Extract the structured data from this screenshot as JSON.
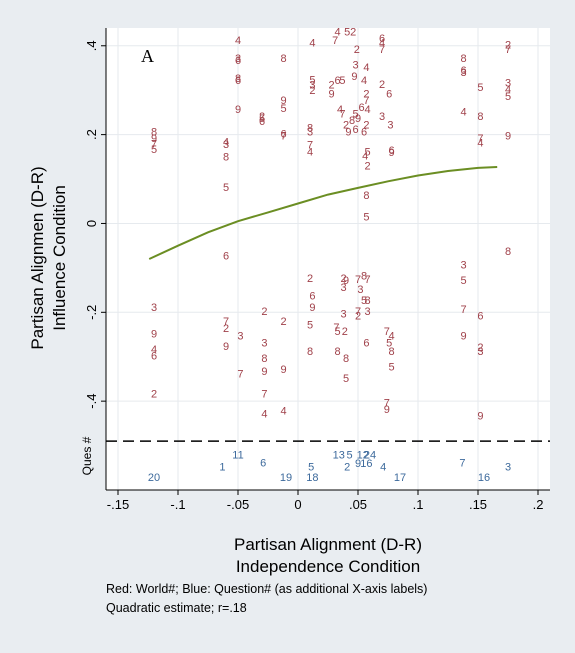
{
  "panel_label": "A",
  "ques_label": "Ques #",
  "notes": [
    "Red: World#; Blue: Question# (as additional X-axis labels)",
    "Quadratic estimate; r=.18"
  ],
  "colors": {
    "world_marker": "#a0414a",
    "question_marker": "#3d6a9c",
    "fit_line": "#6b8e23",
    "grid": "#e6eaee",
    "dash": "#000000"
  },
  "chart_data": {
    "type": "scatter",
    "xlabel": [
      "Partisan Alignment (D-R)",
      "Independence Condition"
    ],
    "ylabel": [
      "Partisan Alignmen (D-R)",
      "Influence Condition"
    ],
    "xlim": [
      -0.16,
      0.21
    ],
    "ylim": [
      -0.6,
      0.44
    ],
    "x_ticks": [
      -0.15,
      -0.1,
      -0.05,
      0,
      0.05,
      0.1,
      0.15,
      0.2
    ],
    "x_tick_labels": [
      "-.15",
      "-.1",
      "-.05",
      "0",
      ".05",
      ".1",
      ".15",
      ".2"
    ],
    "y_ticks": [
      -0.4,
      -0.2,
      0,
      0.2,
      0.4
    ],
    "y_tick_labels": [
      "-.4",
      "-.2",
      "0",
      ".2",
      ".4"
    ],
    "grid": true,
    "dashed_line_y": -0.49,
    "fit": {
      "label": "Quadratic estimate",
      "x": [
        -0.124,
        -0.1,
        -0.075,
        -0.05,
        -0.025,
        0,
        0.025,
        0.05,
        0.075,
        0.1,
        0.125,
        0.15,
        0.166
      ],
      "y": [
        -0.08,
        -0.05,
        -0.02,
        0.005,
        0.025,
        0.045,
        0.065,
        0.08,
        0.095,
        0.108,
        0.118,
        0.125,
        0.127
      ]
    },
    "question_points": [
      {
        "label": "20",
        "x": -0.12,
        "y": -0.573
      },
      {
        "label": "1",
        "x": -0.063,
        "y": -0.55
      },
      {
        "label": "11",
        "x": -0.05,
        "y": -0.522
      },
      {
        "label": "6",
        "x": -0.029,
        "y": -0.54
      },
      {
        "label": "19",
        "x": -0.01,
        "y": -0.573
      },
      {
        "label": "5",
        "x": 0.011,
        "y": -0.55
      },
      {
        "label": "18",
        "x": 0.012,
        "y": -0.573
      },
      {
        "label": "13",
        "x": 0.034,
        "y": -0.522
      },
      {
        "label": "2",
        "x": 0.041,
        "y": -0.55
      },
      {
        "label": "5",
        "x": 0.043,
        "y": -0.522
      },
      {
        "label": "12",
        "x": 0.054,
        "y": -0.522
      },
      {
        "label": "9",
        "x": 0.05,
        "y": -0.542
      },
      {
        "label": "16",
        "x": 0.057,
        "y": -0.542
      },
      {
        "label": "24",
        "x": 0.06,
        "y": -0.522
      },
      {
        "label": "4",
        "x": 0.071,
        "y": -0.55
      },
      {
        "label": "17",
        "x": 0.085,
        "y": -0.573
      },
      {
        "label": "7",
        "x": 0.137,
        "y": -0.54
      },
      {
        "label": "16",
        "x": 0.155,
        "y": -0.573
      },
      {
        "label": "3",
        "x": 0.175,
        "y": -0.55
      }
    ],
    "world_points": [
      {
        "label": "8",
        "x": -0.12,
        "y": 0.205
      },
      {
        "label": "9",
        "x": -0.12,
        "y": 0.19
      },
      {
        "label": "7",
        "x": -0.12,
        "y": 0.178
      },
      {
        "label": "5",
        "x": -0.12,
        "y": 0.165
      },
      {
        "label": "3",
        "x": -0.12,
        "y": -0.19
      },
      {
        "label": "9",
        "x": -0.12,
        "y": -0.25
      },
      {
        "label": "4",
        "x": -0.12,
        "y": -0.285
      },
      {
        "label": "6",
        "x": -0.12,
        "y": -0.3
      },
      {
        "label": "2",
        "x": -0.12,
        "y": -0.385
      },
      {
        "label": "4",
        "x": -0.06,
        "y": 0.182
      },
      {
        "label": "3",
        "x": -0.06,
        "y": 0.176
      },
      {
        "label": "8",
        "x": -0.06,
        "y": 0.148
      },
      {
        "label": "5",
        "x": -0.06,
        "y": 0.08
      },
      {
        "label": "6",
        "x": -0.06,
        "y": -0.075
      },
      {
        "label": "7",
        "x": -0.06,
        "y": -0.222
      },
      {
        "label": "2",
        "x": -0.06,
        "y": -0.238
      },
      {
        "label": "9",
        "x": -0.06,
        "y": -0.278
      },
      {
        "label": "4",
        "x": -0.05,
        "y": 0.41
      },
      {
        "label": "3",
        "x": -0.05,
        "y": 0.37
      },
      {
        "label": "6",
        "x": -0.05,
        "y": 0.365
      },
      {
        "label": "8",
        "x": -0.05,
        "y": 0.325
      },
      {
        "label": "6",
        "x": -0.05,
        "y": 0.32
      },
      {
        "label": "9",
        "x": -0.05,
        "y": 0.255
      },
      {
        "label": "3",
        "x": -0.048,
        "y": -0.255
      },
      {
        "label": "7",
        "x": -0.048,
        "y": -0.34
      },
      {
        "label": "2",
        "x": -0.03,
        "y": 0.24
      },
      {
        "label": "5",
        "x": -0.03,
        "y": 0.235
      },
      {
        "label": "6",
        "x": -0.03,
        "y": 0.228
      },
      {
        "label": "3",
        "x": -0.028,
        "y": -0.27
      },
      {
        "label": "8",
        "x": -0.028,
        "y": -0.305
      },
      {
        "label": "9",
        "x": -0.028,
        "y": -0.335
      },
      {
        "label": "2",
        "x": -0.028,
        "y": -0.2
      },
      {
        "label": "7",
        "x": -0.028,
        "y": -0.385
      },
      {
        "label": "4",
        "x": -0.028,
        "y": -0.43
      },
      {
        "label": "8",
        "x": -0.012,
        "y": 0.37
      },
      {
        "label": "9",
        "x": -0.012,
        "y": 0.275
      },
      {
        "label": "5",
        "x": -0.012,
        "y": 0.258
      },
      {
        "label": "6",
        "x": -0.012,
        "y": 0.2
      },
      {
        "label": "7",
        "x": -0.012,
        "y": 0.195
      },
      {
        "label": "2",
        "x": -0.012,
        "y": -0.222
      },
      {
        "label": "9",
        "x": -0.012,
        "y": -0.33
      },
      {
        "label": "4",
        "x": -0.012,
        "y": -0.423
      },
      {
        "label": "4",
        "x": 0.012,
        "y": 0.405
      },
      {
        "label": "5",
        "x": 0.012,
        "y": 0.322
      },
      {
        "label": "3",
        "x": 0.012,
        "y": 0.31
      },
      {
        "label": "2",
        "x": 0.012,
        "y": 0.298
      },
      {
        "label": "8",
        "x": 0.01,
        "y": 0.213
      },
      {
        "label": "7",
        "x": 0.01,
        "y": 0.175
      },
      {
        "label": "4",
        "x": 0.01,
        "y": 0.16
      },
      {
        "label": "3",
        "x": 0.01,
        "y": 0.205
      },
      {
        "label": "2",
        "x": 0.01,
        "y": -0.125
      },
      {
        "label": "6",
        "x": 0.012,
        "y": -0.165
      },
      {
        "label": "9",
        "x": 0.012,
        "y": -0.19
      },
      {
        "label": "5",
        "x": 0.01,
        "y": -0.23
      },
      {
        "label": "8",
        "x": 0.01,
        "y": -0.29
      },
      {
        "label": "4",
        "x": 0.033,
        "y": 0.43
      },
      {
        "label": "7",
        "x": 0.031,
        "y": 0.41
      },
      {
        "label": "5",
        "x": 0.041,
        "y": 0.43
      },
      {
        "label": "2",
        "x": 0.046,
        "y": 0.43
      },
      {
        "label": "2",
        "x": 0.049,
        "y": 0.39
      },
      {
        "label": "3",
        "x": 0.048,
        "y": 0.355
      },
      {
        "label": "4",
        "x": 0.057,
        "y": 0.35
      },
      {
        "label": "9",
        "x": 0.047,
        "y": 0.33
      },
      {
        "label": "5",
        "x": 0.037,
        "y": 0.32
      },
      {
        "label": "6",
        "x": 0.033,
        "y": 0.32
      },
      {
        "label": "2",
        "x": 0.028,
        "y": 0.31
      },
      {
        "label": "9",
        "x": 0.028,
        "y": 0.29
      },
      {
        "label": "4",
        "x": 0.055,
        "y": 0.32
      },
      {
        "label": "2",
        "x": 0.057,
        "y": 0.29
      },
      {
        "label": "7",
        "x": 0.057,
        "y": 0.275
      },
      {
        "label": "6",
        "x": 0.053,
        "y": 0.26
      },
      {
        "label": "4",
        "x": 0.058,
        "y": 0.255
      },
      {
        "label": "5",
        "x": 0.048,
        "y": 0.245
      },
      {
        "label": "8",
        "x": 0.045,
        "y": 0.23
      },
      {
        "label": "2",
        "x": 0.04,
        "y": 0.22
      },
      {
        "label": "4",
        "x": 0.035,
        "y": 0.255
      },
      {
        "label": "7",
        "x": 0.037,
        "y": 0.245
      },
      {
        "label": "9",
        "x": 0.042,
        "y": 0.205
      },
      {
        "label": "6",
        "x": 0.048,
        "y": 0.21
      },
      {
        "label": "6",
        "x": 0.055,
        "y": 0.205
      },
      {
        "label": "2",
        "x": 0.057,
        "y": 0.22
      },
      {
        "label": "9",
        "x": 0.05,
        "y": 0.235
      },
      {
        "label": "5",
        "x": 0.058,
        "y": 0.16
      },
      {
        "label": "4",
        "x": 0.056,
        "y": 0.15
      },
      {
        "label": "2",
        "x": 0.058,
        "y": 0.128
      },
      {
        "label": "8",
        "x": 0.057,
        "y": 0.062
      },
      {
        "label": "5",
        "x": 0.057,
        "y": 0.013
      },
      {
        "label": "6",
        "x": 0.07,
        "y": 0.415
      },
      {
        "label": "4",
        "x": 0.07,
        "y": 0.405
      },
      {
        "label": "7",
        "x": 0.07,
        "y": 0.39
      },
      {
        "label": "2",
        "x": 0.07,
        "y": 0.312
      },
      {
        "label": "6",
        "x": 0.076,
        "y": 0.29
      },
      {
        "label": "3",
        "x": 0.07,
        "y": 0.24
      },
      {
        "label": "3",
        "x": 0.077,
        "y": 0.22
      },
      {
        "label": "6",
        "x": 0.078,
        "y": 0.163
      },
      {
        "label": "9",
        "x": 0.078,
        "y": 0.158
      },
      {
        "label": "2",
        "x": 0.038,
        "y": -0.125
      },
      {
        "label": "3",
        "x": 0.038,
        "y": -0.145
      },
      {
        "label": "9",
        "x": 0.04,
        "y": -0.13
      },
      {
        "label": "7",
        "x": 0.05,
        "y": -0.128
      },
      {
        "label": "8",
        "x": 0.055,
        "y": -0.12
      },
      {
        "label": "7",
        "x": 0.058,
        "y": -0.128
      },
      {
        "label": "3",
        "x": 0.052,
        "y": -0.15
      },
      {
        "label": "5",
        "x": 0.055,
        "y": -0.175
      },
      {
        "label": "8",
        "x": 0.058,
        "y": -0.175
      },
      {
        "label": "3",
        "x": 0.038,
        "y": -0.205
      },
      {
        "label": "2",
        "x": 0.05,
        "y": -0.21
      },
      {
        "label": "7",
        "x": 0.05,
        "y": -0.2
      },
      {
        "label": "3",
        "x": 0.058,
        "y": -0.2
      },
      {
        "label": "7",
        "x": 0.032,
        "y": -0.235
      },
      {
        "label": "5",
        "x": 0.033,
        "y": -0.245
      },
      {
        "label": "2",
        "x": 0.039,
        "y": -0.245
      },
      {
        "label": "8",
        "x": 0.033,
        "y": -0.29
      },
      {
        "label": "8",
        "x": 0.04,
        "y": -0.305
      },
      {
        "label": "6",
        "x": 0.057,
        "y": -0.27
      },
      {
        "label": "5",
        "x": 0.04,
        "y": -0.35
      },
      {
        "label": "7",
        "x": 0.074,
        "y": -0.245
      },
      {
        "label": "5",
        "x": 0.076,
        "y": -0.27
      },
      {
        "label": "4",
        "x": 0.078,
        "y": -0.255
      },
      {
        "label": "8",
        "x": 0.078,
        "y": -0.29
      },
      {
        "label": "5",
        "x": 0.078,
        "y": -0.325
      },
      {
        "label": "7",
        "x": 0.074,
        "y": -0.405
      },
      {
        "label": "9",
        "x": 0.074,
        "y": -0.42
      },
      {
        "label": "8",
        "x": 0.138,
        "y": 0.37
      },
      {
        "label": "6",
        "x": 0.138,
        "y": 0.343
      },
      {
        "label": "3",
        "x": 0.138,
        "y": 0.338
      },
      {
        "label": "5",
        "x": 0.152,
        "y": 0.305
      },
      {
        "label": "4",
        "x": 0.138,
        "y": 0.25
      },
      {
        "label": "8",
        "x": 0.152,
        "y": 0.24
      },
      {
        "label": "7",
        "x": 0.152,
        "y": 0.19
      },
      {
        "label": "4",
        "x": 0.152,
        "y": 0.18
      },
      {
        "label": "3",
        "x": 0.138,
        "y": -0.095
      },
      {
        "label": "5",
        "x": 0.138,
        "y": -0.13
      },
      {
        "label": "7",
        "x": 0.138,
        "y": -0.195
      },
      {
        "label": "6",
        "x": 0.152,
        "y": -0.21
      },
      {
        "label": "9",
        "x": 0.138,
        "y": -0.255
      },
      {
        "label": "2",
        "x": 0.152,
        "y": -0.28
      },
      {
        "label": "3",
        "x": 0.152,
        "y": -0.29
      },
      {
        "label": "9",
        "x": 0.152,
        "y": -0.435
      },
      {
        "label": "2",
        "x": 0.175,
        "y": 0.4
      },
      {
        "label": "7",
        "x": 0.175,
        "y": 0.39
      },
      {
        "label": "3",
        "x": 0.175,
        "y": 0.315
      },
      {
        "label": "4",
        "x": 0.175,
        "y": 0.3
      },
      {
        "label": "5",
        "x": 0.175,
        "y": 0.285
      },
      {
        "label": "9",
        "x": 0.175,
        "y": 0.195
      },
      {
        "label": "8",
        "x": 0.175,
        "y": -0.065
      }
    ]
  }
}
